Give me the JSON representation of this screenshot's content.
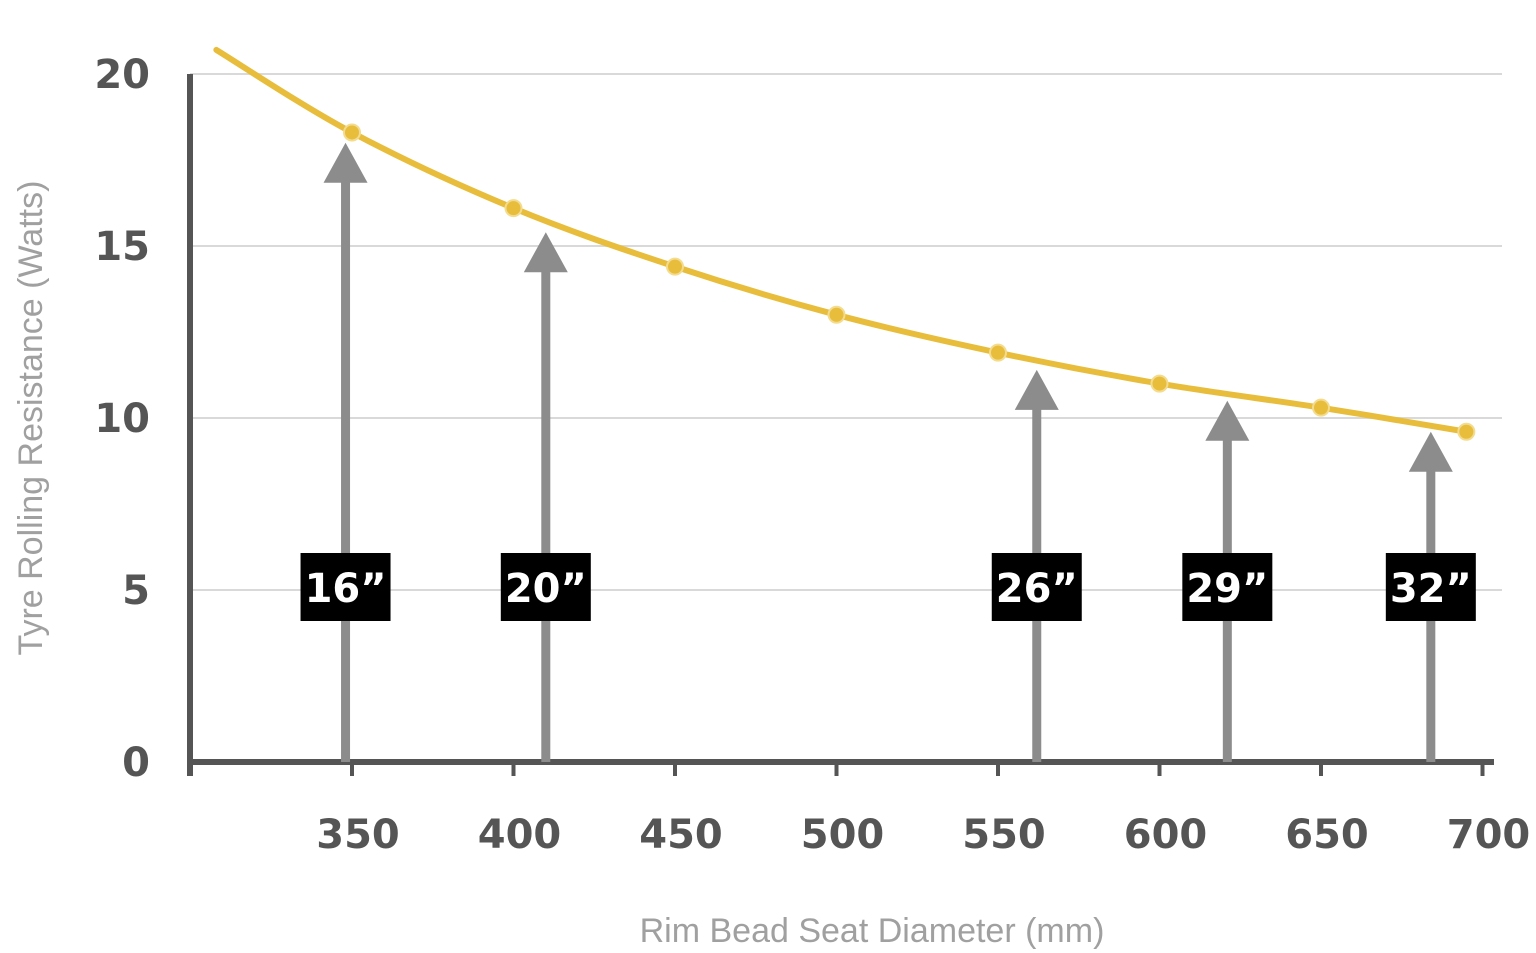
{
  "chart_data": {
    "type": "line",
    "title": "",
    "xlabel": "Rim Bead Seat Diameter (mm)",
    "ylabel": "Tyre Rolling Resistance (Watts)",
    "xlim": [
      300,
      700
    ],
    "ylim": [
      0,
      20
    ],
    "x_ticks": [
      "350",
      "400",
      "450",
      "500",
      "550",
      "600",
      "650",
      "700"
    ],
    "y_ticks": [
      "0",
      "5",
      "10",
      "15",
      "20"
    ],
    "grid": true,
    "line_color": "#e8bd3c",
    "series": [
      {
        "x": [
          350,
          400,
          450,
          500,
          550,
          600,
          650,
          695
        ],
        "y": [
          18.3,
          16.1,
          14.4,
          13.0,
          11.9,
          11.0,
          10.3,
          9.6
        ]
      }
    ],
    "curve_start": {
      "x": 308,
      "y": 20.7
    },
    "annotations": [
      {
        "label": "16”",
        "x": 348,
        "y_tip": 18.0
      },
      {
        "label": "20”",
        "x": 410,
        "y_tip": 15.4
      },
      {
        "label": "26”",
        "x": 562,
        "y_tip": 11.4
      },
      {
        "label": "29”",
        "x": 621,
        "y_tip": 10.5
      },
      {
        "label": "32”",
        "x": 684,
        "y_tip": 9.6
      }
    ],
    "annotation_color": "#8c8c8c"
  }
}
